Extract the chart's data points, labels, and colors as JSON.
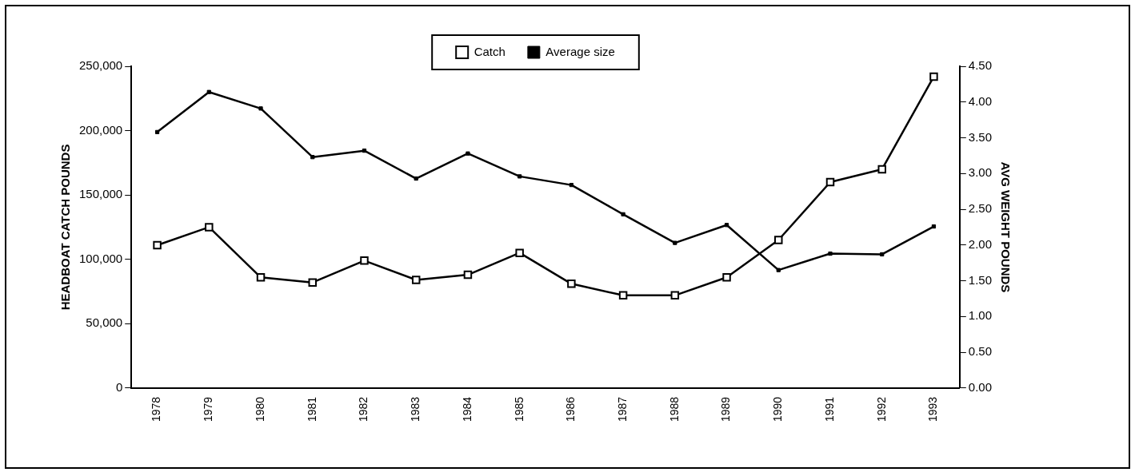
{
  "chart_data": {
    "type": "line",
    "ylabel": "HEADBOAT CATCH POUNDS",
    "y2label": "AVG WEIGHT POUNDS",
    "categories": [
      "1978",
      "1979",
      "1980",
      "1981",
      "1982",
      "1983",
      "1984",
      "1985",
      "1986",
      "1987",
      "1988",
      "1989",
      "1990",
      "1991",
      "1992",
      "1993"
    ],
    "series": [
      {
        "name": "Catch",
        "color": "#000000",
        "marker": "square",
        "values": [
          111000,
          125000,
          86000,
          82000,
          99000,
          84000,
          88000,
          105000,
          81000,
          72000,
          72000,
          86000,
          115000,
          160000,
          170000,
          242000
        ]
      },
      {
        "name": "Average size",
        "color": "#000000",
        "marker": "square",
        "axis": "y2",
        "values": [
          3.58,
          4.14,
          3.91,
          3.23,
          3.32,
          2.93,
          3.28,
          2.96,
          2.84,
          2.43,
          2.03,
          2.28,
          1.65,
          1.88,
          1.87,
          2.26
        ]
      }
    ],
    "ylim": [
      0,
      250000
    ],
    "yticks": [
      {
        "value": 0,
        "label": "0"
      },
      {
        "value": 50000,
        "label": "50,000"
      },
      {
        "value": 100000,
        "label": "100,000"
      },
      {
        "value": 150000,
        "label": "150,000"
      },
      {
        "value": 200000,
        "label": "200,000"
      },
      {
        "value": 250000,
        "label": "250,000"
      }
    ],
    "y2lim": [
      0,
      4.5
    ],
    "y2ticks": [
      {
        "value": 0,
        "label": "0.00"
      },
      {
        "value": 0.5,
        "label": "0.50"
      },
      {
        "value": 1,
        "label": "1.00"
      },
      {
        "value": 1.5,
        "label": "1.50"
      },
      {
        "value": 2,
        "label": "2.00"
      },
      {
        "value": 2.5,
        "label": "2.50"
      },
      {
        "value": 3,
        "label": "3.00"
      },
      {
        "value": 3.5,
        "label": "3.50"
      },
      {
        "value": 4,
        "label": "4.00"
      },
      {
        "value": 4.5,
        "label": "4.50"
      }
    ],
    "grid": false,
    "legend": "top",
    "line_style": "solid"
  }
}
